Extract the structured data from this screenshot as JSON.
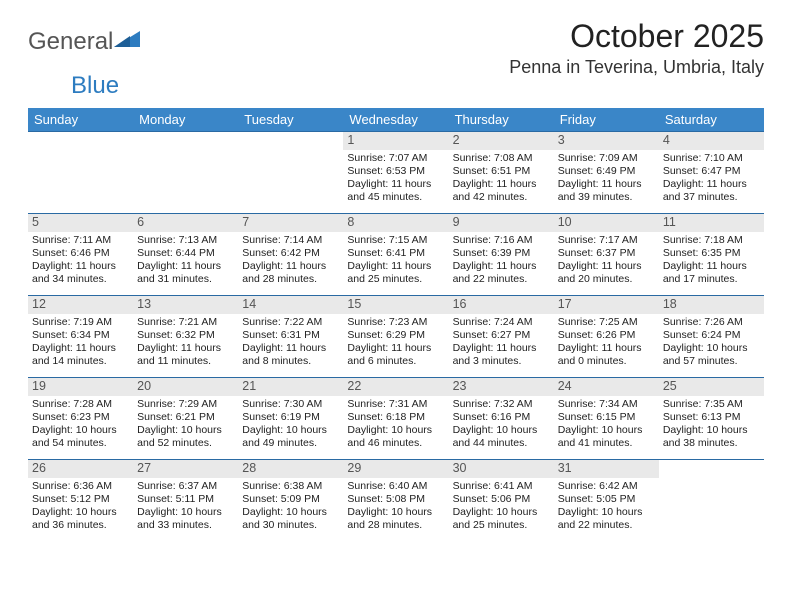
{
  "brand": {
    "word1": "General",
    "word2": "Blue",
    "color1": "#555555",
    "color2": "#2d7cc0",
    "shape_color": "#2d7cc0"
  },
  "title": {
    "month": "October 2025",
    "location": "Penna in Teverina, Umbria, Italy"
  },
  "theme": {
    "header_bg": "#3a86c8",
    "header_fg": "#ffffff",
    "row_border": "#2a6aa3",
    "daynum_bg": "#e9e9e9",
    "daynum_fg": "#555555",
    "text": "#222222"
  },
  "weekdays": [
    "Sunday",
    "Monday",
    "Tuesday",
    "Wednesday",
    "Thursday",
    "Friday",
    "Saturday"
  ],
  "weeks": [
    [
      null,
      null,
      null,
      {
        "n": "1",
        "sr": "7:07 AM",
        "ss": "6:53 PM",
        "dl": "11 hours and 45 minutes."
      },
      {
        "n": "2",
        "sr": "7:08 AM",
        "ss": "6:51 PM",
        "dl": "11 hours and 42 minutes."
      },
      {
        "n": "3",
        "sr": "7:09 AM",
        "ss": "6:49 PM",
        "dl": "11 hours and 39 minutes."
      },
      {
        "n": "4",
        "sr": "7:10 AM",
        "ss": "6:47 PM",
        "dl": "11 hours and 37 minutes."
      }
    ],
    [
      {
        "n": "5",
        "sr": "7:11 AM",
        "ss": "6:46 PM",
        "dl": "11 hours and 34 minutes."
      },
      {
        "n": "6",
        "sr": "7:13 AM",
        "ss": "6:44 PM",
        "dl": "11 hours and 31 minutes."
      },
      {
        "n": "7",
        "sr": "7:14 AM",
        "ss": "6:42 PM",
        "dl": "11 hours and 28 minutes."
      },
      {
        "n": "8",
        "sr": "7:15 AM",
        "ss": "6:41 PM",
        "dl": "11 hours and 25 minutes."
      },
      {
        "n": "9",
        "sr": "7:16 AM",
        "ss": "6:39 PM",
        "dl": "11 hours and 22 minutes."
      },
      {
        "n": "10",
        "sr": "7:17 AM",
        "ss": "6:37 PM",
        "dl": "11 hours and 20 minutes."
      },
      {
        "n": "11",
        "sr": "7:18 AM",
        "ss": "6:35 PM",
        "dl": "11 hours and 17 minutes."
      }
    ],
    [
      {
        "n": "12",
        "sr": "7:19 AM",
        "ss": "6:34 PM",
        "dl": "11 hours and 14 minutes."
      },
      {
        "n": "13",
        "sr": "7:21 AM",
        "ss": "6:32 PM",
        "dl": "11 hours and 11 minutes."
      },
      {
        "n": "14",
        "sr": "7:22 AM",
        "ss": "6:31 PM",
        "dl": "11 hours and 8 minutes."
      },
      {
        "n": "15",
        "sr": "7:23 AM",
        "ss": "6:29 PM",
        "dl": "11 hours and 6 minutes."
      },
      {
        "n": "16",
        "sr": "7:24 AM",
        "ss": "6:27 PM",
        "dl": "11 hours and 3 minutes."
      },
      {
        "n": "17",
        "sr": "7:25 AM",
        "ss": "6:26 PM",
        "dl": "11 hours and 0 minutes."
      },
      {
        "n": "18",
        "sr": "7:26 AM",
        "ss": "6:24 PM",
        "dl": "10 hours and 57 minutes."
      }
    ],
    [
      {
        "n": "19",
        "sr": "7:28 AM",
        "ss": "6:23 PM",
        "dl": "10 hours and 54 minutes."
      },
      {
        "n": "20",
        "sr": "7:29 AM",
        "ss": "6:21 PM",
        "dl": "10 hours and 52 minutes."
      },
      {
        "n": "21",
        "sr": "7:30 AM",
        "ss": "6:19 PM",
        "dl": "10 hours and 49 minutes."
      },
      {
        "n": "22",
        "sr": "7:31 AM",
        "ss": "6:18 PM",
        "dl": "10 hours and 46 minutes."
      },
      {
        "n": "23",
        "sr": "7:32 AM",
        "ss": "6:16 PM",
        "dl": "10 hours and 44 minutes."
      },
      {
        "n": "24",
        "sr": "7:34 AM",
        "ss": "6:15 PM",
        "dl": "10 hours and 41 minutes."
      },
      {
        "n": "25",
        "sr": "7:35 AM",
        "ss": "6:13 PM",
        "dl": "10 hours and 38 minutes."
      }
    ],
    [
      {
        "n": "26",
        "sr": "6:36 AM",
        "ss": "5:12 PM",
        "dl": "10 hours and 36 minutes."
      },
      {
        "n": "27",
        "sr": "6:37 AM",
        "ss": "5:11 PM",
        "dl": "10 hours and 33 minutes."
      },
      {
        "n": "28",
        "sr": "6:38 AM",
        "ss": "5:09 PM",
        "dl": "10 hours and 30 minutes."
      },
      {
        "n": "29",
        "sr": "6:40 AM",
        "ss": "5:08 PM",
        "dl": "10 hours and 28 minutes."
      },
      {
        "n": "30",
        "sr": "6:41 AM",
        "ss": "5:06 PM",
        "dl": "10 hours and 25 minutes."
      },
      {
        "n": "31",
        "sr": "6:42 AM",
        "ss": "5:05 PM",
        "dl": "10 hours and 22 minutes."
      },
      null
    ]
  ],
  "labels": {
    "sunrise": "Sunrise: ",
    "sunset": "Sunset: ",
    "daylight": "Daylight: "
  }
}
